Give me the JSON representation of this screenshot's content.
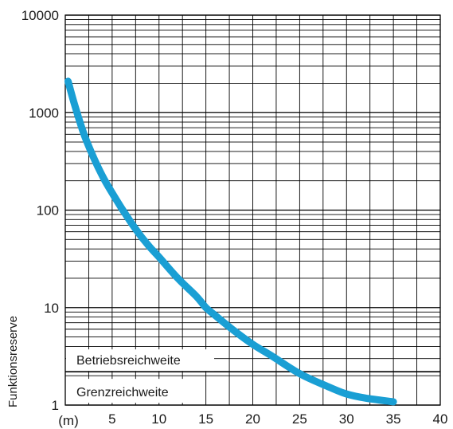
{
  "chart_data": {
    "type": "line",
    "title": "",
    "xlabel": "",
    "x_unit_label": "(m)",
    "ylabel": "Funktionsreserve",
    "y_scale": "log",
    "xlim": [
      0,
      40
    ],
    "ylim": [
      1,
      10000
    ],
    "x_ticks": [
      5,
      10,
      15,
      20,
      25,
      30,
      35,
      40
    ],
    "y_ticks": [
      1,
      10,
      100,
      1000,
      10000
    ],
    "y_tick_labels": [
      "1",
      "10",
      "100",
      "1000",
      "10000"
    ],
    "grid": true,
    "legend": "none",
    "reference_line": {
      "y": 2.2
    },
    "regions": {
      "above_label": "Betriebsreichweite",
      "below_label": "Grenzreichweite"
    },
    "series": [
      {
        "color": "#1a9fd4",
        "x": [
          0.3,
          1,
          2,
          3,
          4,
          5,
          6,
          7,
          8,
          9,
          10,
          12,
          14,
          15,
          16,
          18,
          20,
          22,
          25,
          28,
          30,
          32,
          35
        ],
        "y": [
          2100,
          1200,
          600,
          350,
          220,
          150,
          105,
          75,
          55,
          42,
          33,
          20,
          13,
          10,
          8.3,
          5.8,
          4.2,
          3.2,
          2.1,
          1.55,
          1.3,
          1.18,
          1.08
        ]
      }
    ]
  }
}
